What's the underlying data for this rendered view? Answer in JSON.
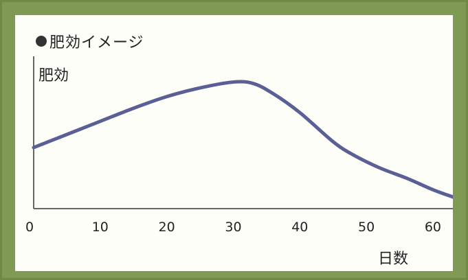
{
  "chart_data": {
    "type": "line",
    "title": "肥効イメージ",
    "ylabel": "肥効",
    "xlabel": "日数",
    "x_ticks": [
      "0",
      "10",
      "20",
      "30",
      "40",
      "50",
      "60"
    ],
    "xlim": [
      0,
      63
    ],
    "ylim": [
      0,
      100
    ],
    "grid": false,
    "series": [
      {
        "color": "#5a5f96",
        "x": [
          0,
          5,
          10,
          15,
          20,
          25,
          30,
          33,
          36,
          40,
          45,
          48,
          52,
          56,
          60,
          63
        ],
        "y": [
          42,
          51,
          60,
          69,
          77,
          83,
          87,
          86,
          79,
          66,
          46,
          37,
          28,
          21,
          13,
          8
        ]
      }
    ]
  }
}
